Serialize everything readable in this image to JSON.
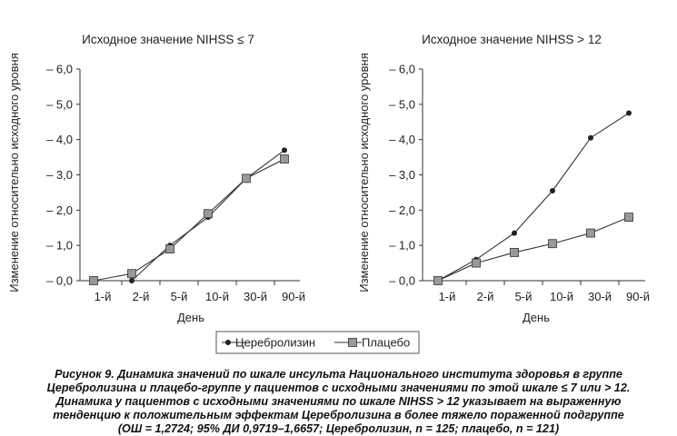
{
  "chart_data": [
    {
      "type": "line",
      "title": "Исходное значение NIHSS ≤ 7",
      "xlabel": "День",
      "ylabel": "Изменение относительно исходного уровня",
      "categories": [
        "1-й",
        "2-й",
        "5-й",
        "10-й",
        "30-й",
        "90-й"
      ],
      "yticks": [
        "0,0",
        "1,0",
        "2,0",
        "3,0",
        "4,0",
        "5,0",
        "6,0"
      ],
      "ylim": [
        0,
        6
      ],
      "series": [
        {
          "name": "Церебролизин",
          "marker": "circle",
          "values": [
            0.0,
            0.0,
            1.0,
            1.8,
            2.9,
            3.7
          ]
        },
        {
          "name": "Плацебо",
          "marker": "square",
          "values": [
            0.0,
            0.2,
            0.9,
            1.9,
            2.9,
            3.45
          ]
        }
      ]
    },
    {
      "type": "line",
      "title": "Исходное значение NIHSS > 12",
      "xlabel": "День",
      "ylabel": "Изменение относительно исходного уровня",
      "categories": [
        "1-й",
        "2-й",
        "5-й",
        "10-й",
        "30-й",
        "90-й"
      ],
      "yticks": [
        "0,0",
        "1,0",
        "2,0",
        "3,0",
        "4,0",
        "5,0",
        "6,0"
      ],
      "ylim": [
        0,
        6
      ],
      "series": [
        {
          "name": "Церебролизин",
          "marker": "circle",
          "values": [
            0.0,
            0.6,
            1.35,
            2.55,
            4.05,
            4.75
          ]
        },
        {
          "name": "Плацебо",
          "marker": "square",
          "values": [
            0.0,
            0.5,
            0.8,
            1.05,
            1.35,
            1.8
          ]
        }
      ]
    }
  ],
  "legend": {
    "items": [
      "Церебролизин",
      "Плацебо"
    ],
    "placement": "bottom-center"
  },
  "caption": [
    "Рисунок 9. Динамика значений по шкале инсульта Национального института здоровья в группе",
    "Церебролизина и плацебо-группе у пациентов с исходными значениями по этой шкале ≤ 7 или > 12.",
    "Динамика у пациентов с исходными значениями по шкале NIHSS > 12 указывает на выраженную",
    "тенденцию к положительным эффектам Церебролизина в более тяжело пораженной подгруппе",
    "(ОШ = 1,2724; 95% ДИ 0,9719–1,6657; Церебролизин, n = 125; плацебо, n = 121)"
  ],
  "colors": {
    "line": "#333333",
    "marker_fill": "#222222",
    "placebo_fill": "#999999"
  }
}
